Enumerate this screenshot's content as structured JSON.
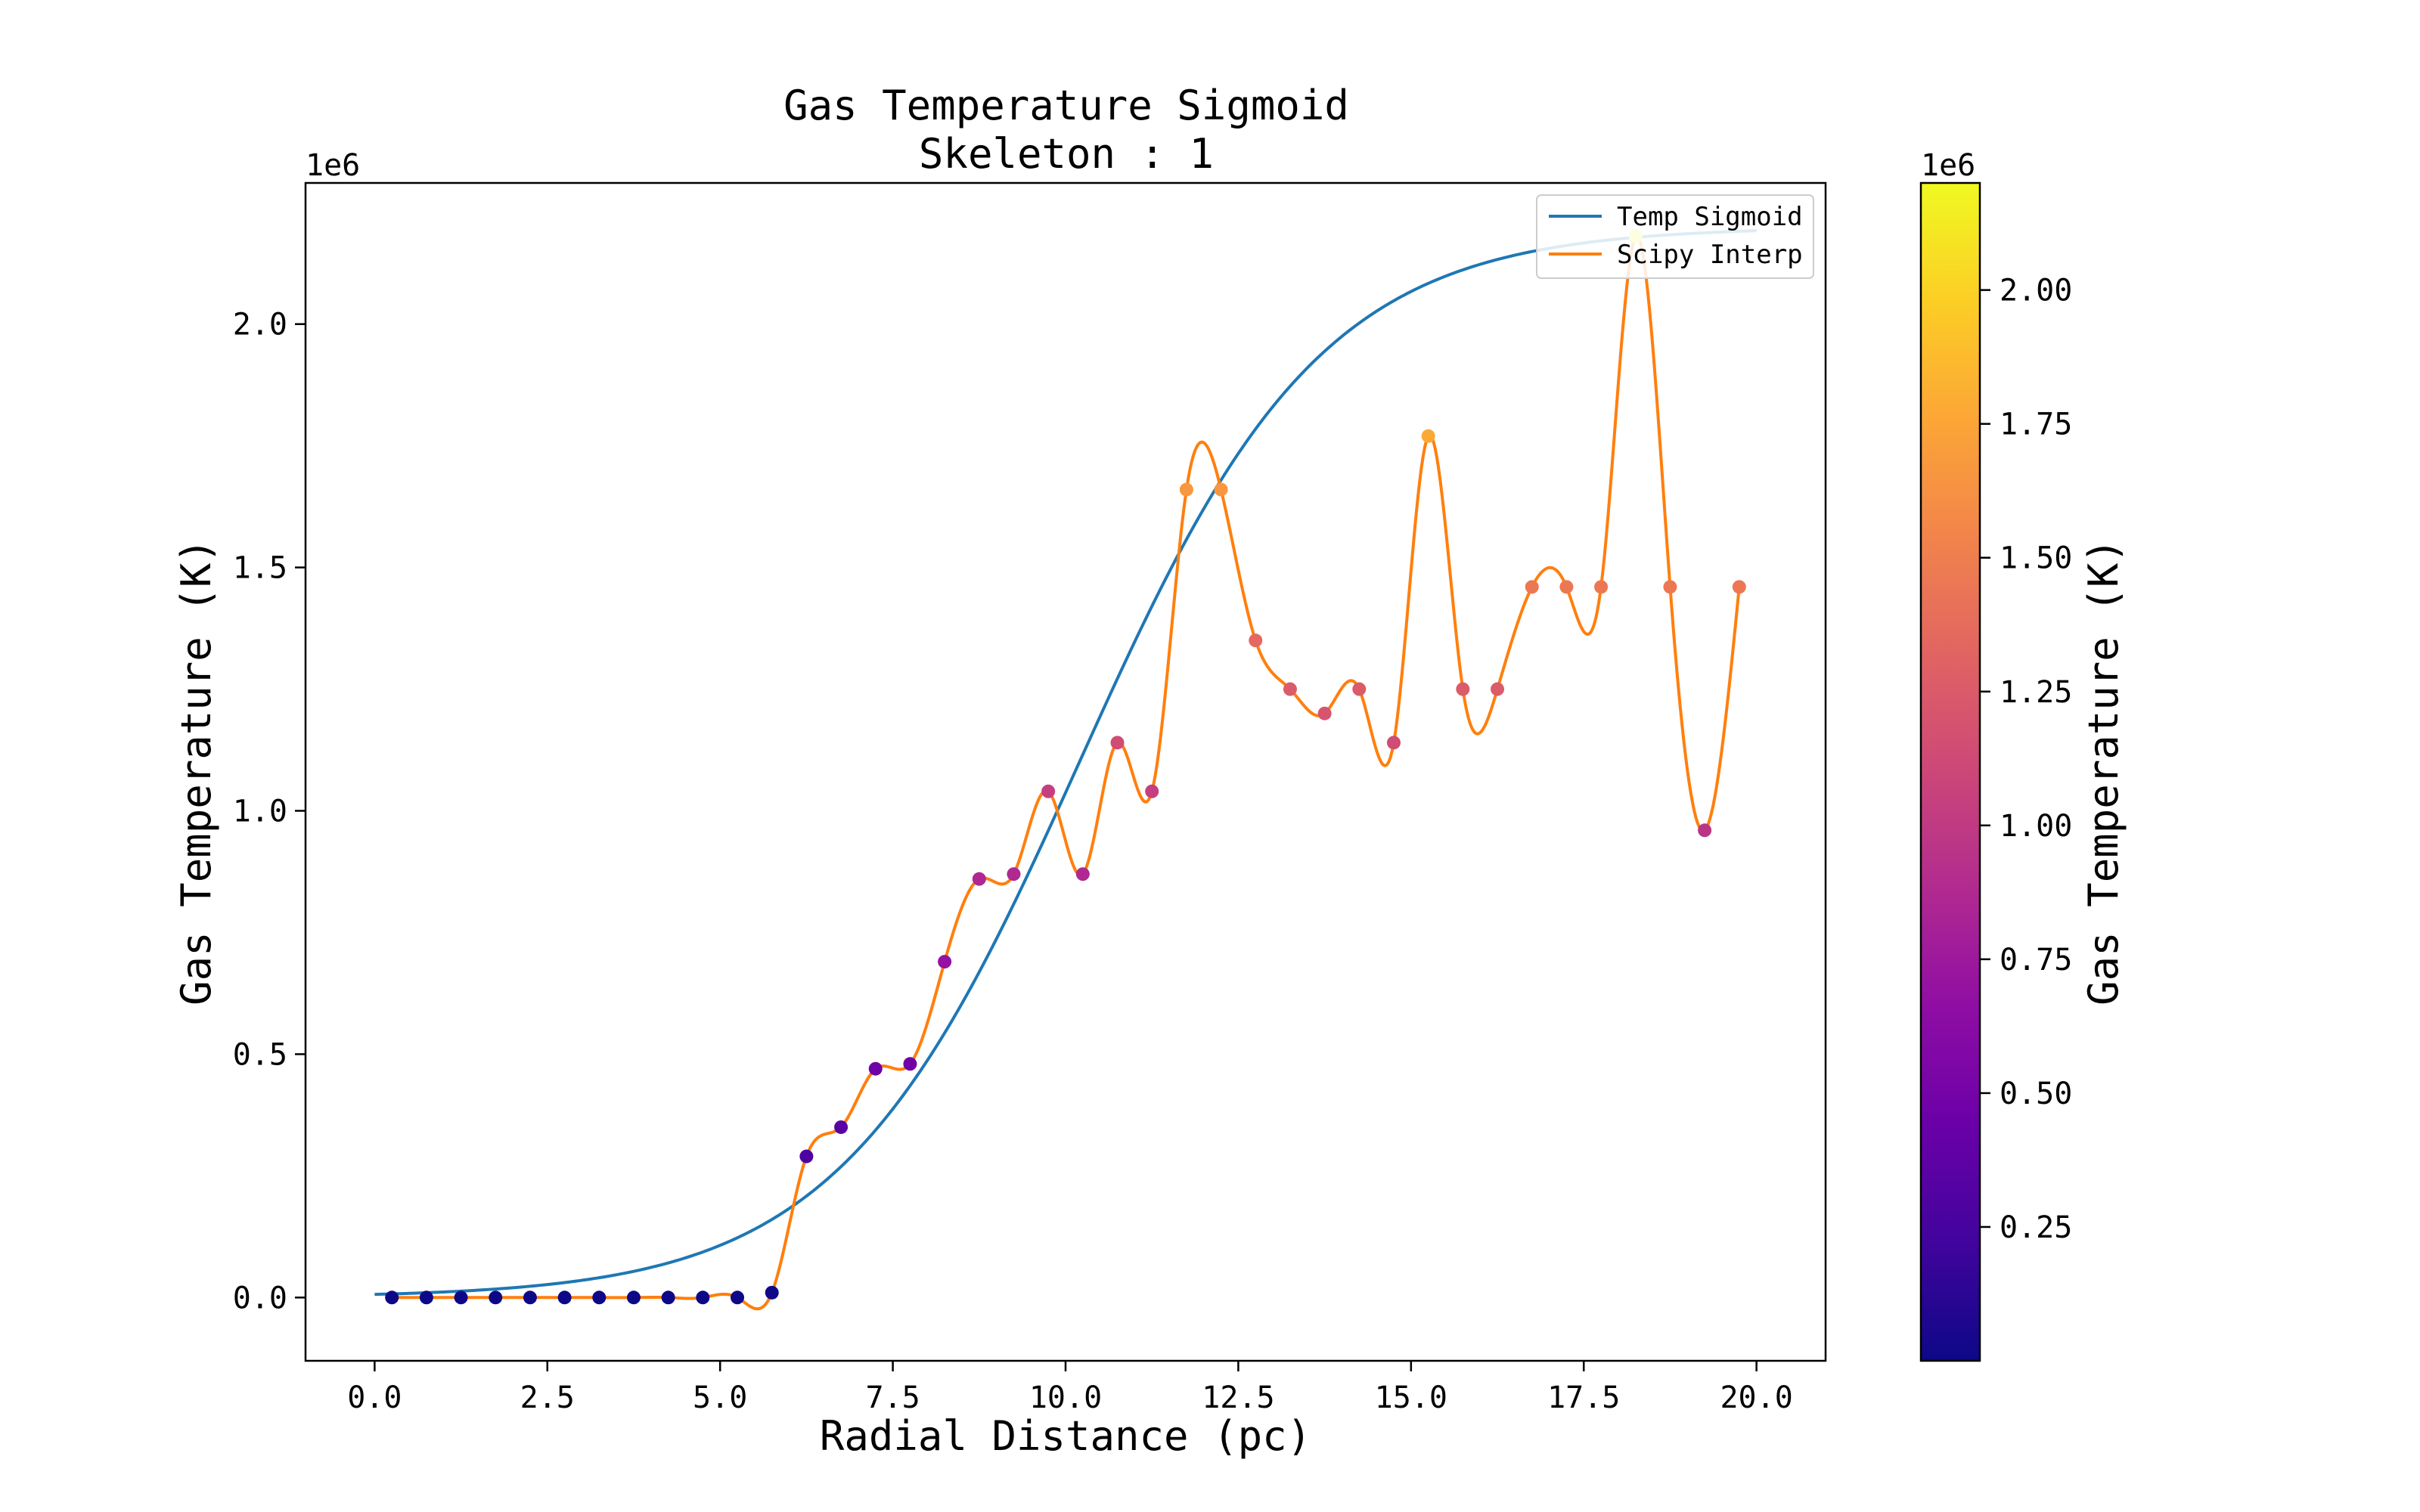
{
  "chart_data": {
    "type": "line",
    "title": "Gas Temperature Sigmoid",
    "subtitle": "Skeleton : 1",
    "xlabel": "Radial Distance (pc)",
    "ylabel": "Gas Temperature (K)",
    "y_offset_label": "1e6",
    "xlim": [
      -1.0,
      21.0
    ],
    "ylim": [
      -0.13,
      2.29
    ],
    "y_scale": 1000000,
    "x_ticks": [
      0.0,
      2.5,
      5.0,
      7.5,
      10.0,
      12.5,
      15.0,
      17.5,
      20.0
    ],
    "x_tick_labels": [
      "0.0",
      "2.5",
      "5.0",
      "7.5",
      "10.0",
      "12.5",
      "15.0",
      "17.5",
      "20.0"
    ],
    "y_ticks": [
      0.0,
      0.5,
      1.0,
      1.5,
      2.0
    ],
    "y_tick_labels": [
      "0.0",
      "0.5",
      "1.0",
      "1.5",
      "2.0"
    ],
    "grid": false,
    "legend": {
      "location": "top-right",
      "entries": [
        {
          "label": "Temp Sigmoid",
          "color": "#1f77b4"
        },
        {
          "label": "Scipy Interp",
          "color": "#ff7f0e"
        }
      ]
    },
    "sigmoid": {
      "name": "Temp Sigmoid",
      "color": "#1f77b4",
      "x_range": [
        0.0,
        20.0
      ],
      "max": 2.2,
      "midpoint": 10.2,
      "width": 1.75
    },
    "points": {
      "name": "Scipy Interp",
      "color": "#ff7f0e",
      "x": [
        0.25,
        0.75,
        1.25,
        1.75,
        2.25,
        2.75,
        3.25,
        3.75,
        4.25,
        4.75,
        5.25,
        5.75,
        6.25,
        6.75,
        7.25,
        7.75,
        8.25,
        8.75,
        9.25,
        9.75,
        10.25,
        10.75,
        11.25,
        11.75,
        12.25,
        12.75,
        13.25,
        13.75,
        14.25,
        14.75,
        15.25,
        15.75,
        16.25,
        16.75,
        17.25,
        17.75,
        18.25,
        18.75,
        19.25,
        19.75
      ],
      "y": [
        0.0,
        0.0,
        0.0,
        0.0,
        0.0,
        0.0,
        0.0,
        0.0,
        0.0,
        0.0,
        0.0,
        0.01,
        0.29,
        0.35,
        0.47,
        0.48,
        0.69,
        0.86,
        0.87,
        1.04,
        0.87,
        1.14,
        1.04,
        1.66,
        1.66,
        1.35,
        1.25,
        1.2,
        1.25,
        1.14,
        1.77,
        1.25,
        1.25,
        1.46,
        1.46,
        1.46,
        2.18,
        1.46,
        0.96,
        1.46
      ]
    },
    "colorbar": {
      "label": "Gas Temperature (K)",
      "offset_label": "1e6",
      "colormap": "plasma",
      "range": [
        0.0,
        2.2
      ],
      "ticks": [
        0.25,
        0.5,
        0.75,
        1.0,
        1.25,
        1.5,
        1.75,
        2.0
      ],
      "tick_labels": [
        "0.25",
        "0.50",
        "0.75",
        "1.00",
        "1.25",
        "1.50",
        "1.75",
        "2.00"
      ]
    }
  }
}
